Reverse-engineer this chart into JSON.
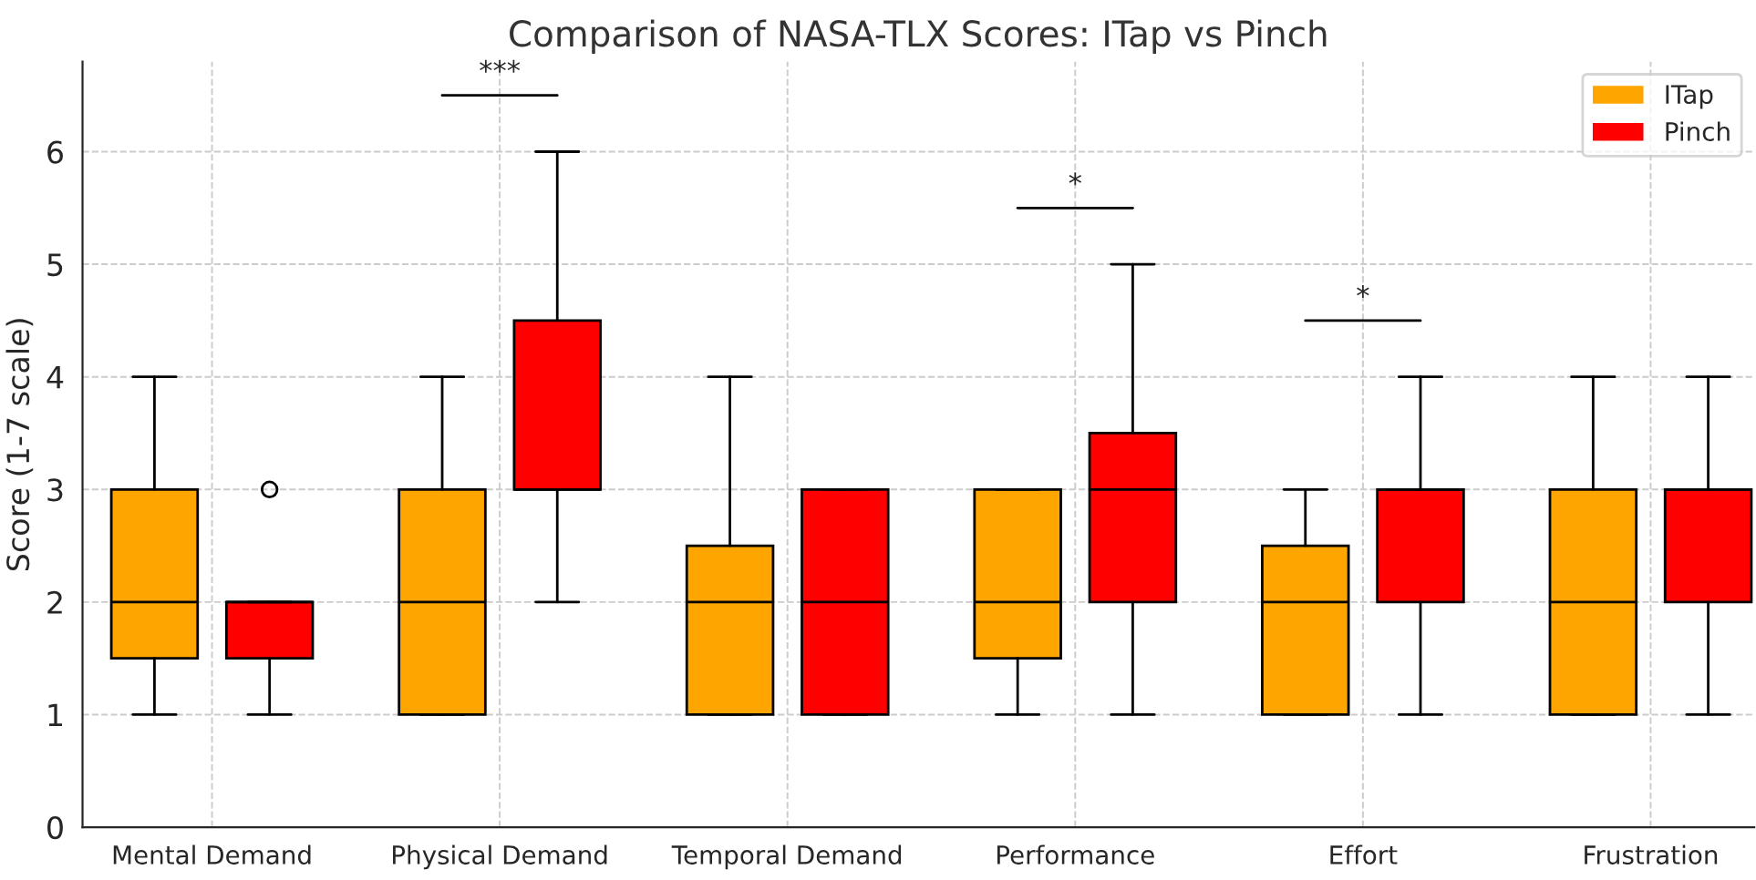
{
  "chart_data": {
    "type": "box",
    "title": "Comparison of NASA-TLX Scores: ITap vs Pinch",
    "ylabel": "Score (1-7 scale)",
    "categories": [
      "Mental Demand",
      "Physical Demand",
      "Temporal Demand",
      "Performance",
      "Effort",
      "Frustration"
    ],
    "series": [
      {
        "name": "ITap",
        "color": "#ffa500",
        "boxes": [
          {
            "low": 1,
            "q1": 1.5,
            "median": 2,
            "q3": 3,
            "high": 4
          },
          {
            "low": 1,
            "q1": 1,
            "median": 2,
            "q3": 3,
            "high": 4
          },
          {
            "low": 1,
            "q1": 1,
            "median": 2,
            "q3": 2.5,
            "high": 4
          },
          {
            "low": 1,
            "q1": 1.5,
            "median": 2,
            "q3": 3,
            "high": 3
          },
          {
            "low": 1,
            "q1": 1,
            "median": 2,
            "q3": 2.5,
            "high": 3
          },
          {
            "low": 1,
            "q1": 1,
            "median": 2,
            "q3": 3,
            "high": 4
          }
        ]
      },
      {
        "name": "Pinch",
        "color": "#ff0000",
        "boxes": [
          {
            "low": 1,
            "q1": 1.5,
            "median": 2,
            "q3": 2,
            "high": 2,
            "outliers": [
              3
            ]
          },
          {
            "low": 2,
            "q1": 3,
            "median": 3,
            "q3": 4.5,
            "high": 6
          },
          {
            "low": 1,
            "q1": 1,
            "median": 2,
            "q3": 3,
            "high": 3
          },
          {
            "low": 1,
            "q1": 2,
            "median": 3,
            "q3": 3.5,
            "high": 5
          },
          {
            "low": 1,
            "q1": 2,
            "median": 3,
            "q3": 3,
            "high": 4
          },
          {
            "low": 1,
            "q1": 2,
            "median": 3,
            "q3": 3,
            "high": 4
          }
        ]
      }
    ],
    "annotations": [
      "***",
      "*",
      "*"
    ],
    "ylim": [
      0,
      6.8
    ],
    "yticks": [
      0,
      1,
      2,
      3,
      4,
      5,
      6
    ],
    "grid": true,
    "legend": "top right"
  }
}
